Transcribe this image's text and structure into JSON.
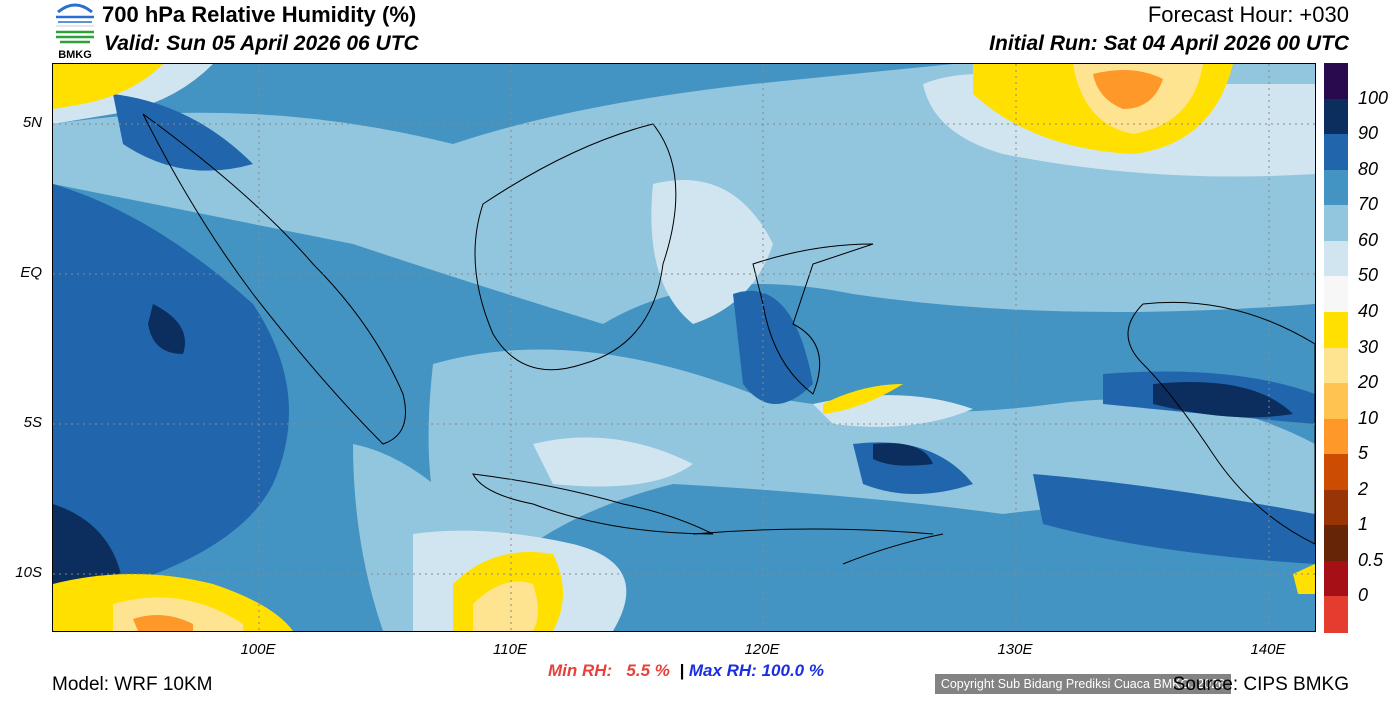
{
  "header": {
    "title": "700 hPa Relative Humidity (%)",
    "valid": "Valid: Sun 05 April 2026 06 UTC",
    "forecast_hour": "Forecast Hour: +030",
    "initial_run": "Initial Run: Sat 04 April 2026 00 UTC",
    "logo_text": "BMKG"
  },
  "map": {
    "lat_labels": [
      "5N",
      "EQ",
      "5S",
      "10S"
    ],
    "lon_labels": [
      "100E",
      "110E",
      "120E",
      "130E",
      "140E"
    ],
    "copyright": "Copyright Sub Bidang Prediksi Cuaca BMKG, 2026"
  },
  "colorbar": {
    "labels": [
      "100",
      "90",
      "80",
      "70",
      "60",
      "50",
      "40",
      "30",
      "20",
      "10",
      "5",
      "2",
      "1",
      "0.5",
      "0"
    ],
    "colors": [
      "#2a0a4f",
      "#0b2e5e",
      "#2166ac",
      "#4393c3",
      "#92c5de",
      "#d1e5f0",
      "#f7f7f7",
      "#ffe000",
      "#fee391",
      "#fec44f",
      "#fe9929",
      "#cc4c02",
      "#993404",
      "#662506",
      "#a50f15",
      "#e43d30"
    ]
  },
  "footer": {
    "model": "Model: WRF 10KM",
    "min_rh_label": "Min RH:",
    "min_rh_value": "5.5 %",
    "separator": "|",
    "max_rh_label": "Max RH:",
    "max_rh_value": "100.0 %",
    "source": "Source: CIPS BMKG",
    "min_color": "#e8403a",
    "max_color": "#1a2fe0"
  }
}
